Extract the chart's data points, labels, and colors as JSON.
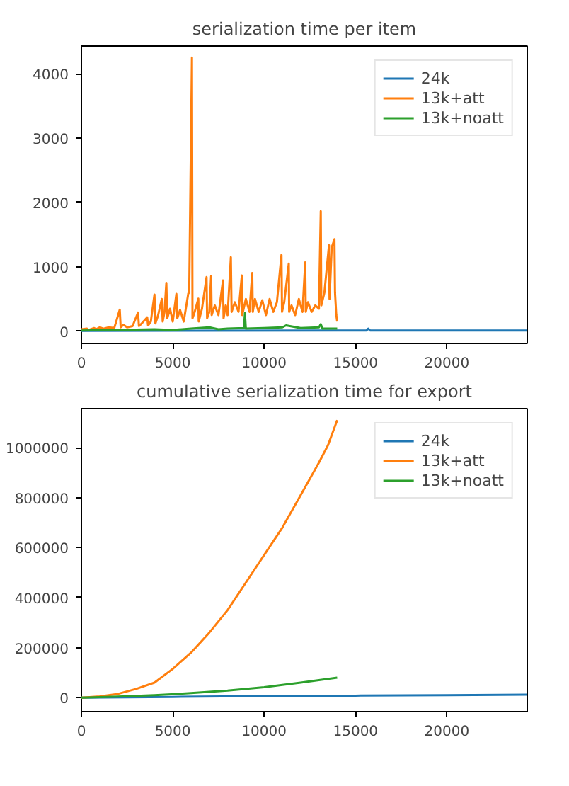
{
  "chart_data": [
    {
      "type": "line",
      "title": "serialization time per item",
      "xlim": [
        0,
        24400
      ],
      "xticks": [
        0,
        5000,
        10000,
        15000,
        20000
      ],
      "ylim": [
        -190,
        4430
      ],
      "yticks": [
        0,
        1000,
        2000,
        3000,
        4000
      ],
      "grid": false,
      "legend": "top right",
      "series": [
        {
          "name": "24k",
          "color": "#1f77b4",
          "x": [
            0,
            14000,
            15600,
            15700,
            15800,
            24400
          ],
          "values": [
            5,
            10,
            10,
            40,
            10,
            10
          ]
        },
        {
          "name": "13k+att",
          "color": "#ff7f0e",
          "x": [
            0,
            300,
            400,
            700,
            800,
            1000,
            1200,
            1500,
            1800,
            2100,
            2150,
            2300,
            2500,
            2800,
            3100,
            3150,
            3300,
            3600,
            3650,
            3800,
            4000,
            4050,
            4200,
            4400,
            4450,
            4550,
            4650,
            4700,
            4850,
            5000,
            5200,
            5250,
            5400,
            5600,
            5850,
            5900,
            6050,
            6080,
            6200,
            6400,
            6420,
            6600,
            6850,
            6880,
            7000,
            7100,
            7130,
            7300,
            7500,
            7750,
            7780,
            7900,
            8000,
            8180,
            8220,
            8400,
            8600,
            8780,
            8800,
            9000,
            9200,
            9350,
            9380,
            9500,
            9700,
            9900,
            10100,
            10300,
            10500,
            10700,
            10950,
            10980,
            11100,
            11350,
            11370,
            11500,
            11700,
            11900,
            12100,
            12250,
            12280,
            12400,
            12600,
            12800,
            13000,
            13100,
            13130,
            13300,
            13550,
            13580,
            13700,
            13850,
            13880,
            13950,
            14000
          ],
          "values": [
            30,
            40,
            20,
            50,
            30,
            60,
            40,
            60,
            50,
            335,
            60,
            100,
            60,
            80,
            290,
            80,
            120,
            215,
            90,
            150,
            570,
            120,
            250,
            500,
            150,
            300,
            750,
            200,
            350,
            150,
            580,
            200,
            330,
            150,
            585,
            600,
            4250,
            200,
            300,
            505,
            150,
            350,
            840,
            200,
            300,
            855,
            250,
            400,
            250,
            790,
            200,
            400,
            250,
            1150,
            300,
            450,
            300,
            865,
            250,
            500,
            300,
            905,
            300,
            500,
            300,
            480,
            250,
            500,
            300,
            450,
            1185,
            300,
            450,
            1050,
            300,
            400,
            250,
            500,
            300,
            1070,
            300,
            450,
            300,
            400,
            350,
            1865,
            400,
            600,
            1335,
            500,
            1300,
            1430,
            600,
            250,
            150
          ]
        },
        {
          "name": "13k+noatt",
          "color": "#2ca02c",
          "x": [
            0,
            1000,
            2000,
            3000,
            4000,
            5000,
            6000,
            7000,
            7500,
            8000,
            8900,
            8950,
            9000,
            10000,
            11000,
            11200,
            12000,
            13000,
            13100,
            13200,
            14000
          ],
          "values": [
            10,
            15,
            20,
            25,
            30,
            20,
            40,
            60,
            30,
            40,
            50,
            280,
            40,
            50,
            60,
            90,
            50,
            60,
            110,
            40,
            40
          ]
        }
      ]
    },
    {
      "type": "line",
      "title": "cumulative serialization time for export",
      "xlim": [
        0,
        24400
      ],
      "xticks": [
        0,
        5000,
        10000,
        15000,
        20000
      ],
      "ylim": [
        -56000,
        1156000
      ],
      "yticks": [
        0,
        200000,
        400000,
        600000,
        800000,
        1000000
      ],
      "grid": false,
      "legend": "top right",
      "series": [
        {
          "name": "24k",
          "color": "#1f77b4",
          "x": [
            0,
            5000,
            10000,
            15000,
            20000,
            24400
          ],
          "values": [
            0,
            3000,
            6000,
            8000,
            10000,
            12000
          ]
        },
        {
          "name": "13k+att",
          "color": "#ff7f0e",
          "x": [
            0,
            1000,
            2000,
            3000,
            4000,
            5000,
            6000,
            7000,
            8000,
            9000,
            10000,
            11000,
            12000,
            13000,
            13500,
            14000
          ],
          "values": [
            0,
            5000,
            15000,
            35000,
            60000,
            115000,
            180000,
            260000,
            350000,
            460000,
            570000,
            680000,
            810000,
            940000,
            1010000,
            1110000
          ]
        },
        {
          "name": "13k+noatt",
          "color": "#2ca02c",
          "x": [
            0,
            2000,
            4000,
            6000,
            8000,
            10000,
            12000,
            14000
          ],
          "values": [
            0,
            4000,
            10000,
            18000,
            28000,
            42000,
            60000,
            80000
          ]
        }
      ]
    }
  ]
}
